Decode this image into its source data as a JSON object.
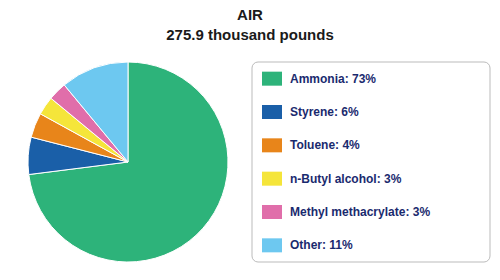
{
  "chart_data": {
    "type": "pie",
    "title": "AIR",
    "subtitle": "275.9 thousand pounds",
    "categories": [
      "Ammonia: 73%",
      "Styrene: 6%",
      "Toluene: 4%",
      "n-Butyl alcohol: 3%",
      "Methyl methacrylate: 3%",
      "Other: 11%"
    ],
    "values": [
      73,
      6,
      4,
      3,
      3,
      11
    ],
    "colors": [
      "#2db37a",
      "#1a5fa8",
      "#e8851a",
      "#f5e53a",
      "#e06eaa",
      "#6dc8f0"
    ],
    "legend": "right"
  }
}
